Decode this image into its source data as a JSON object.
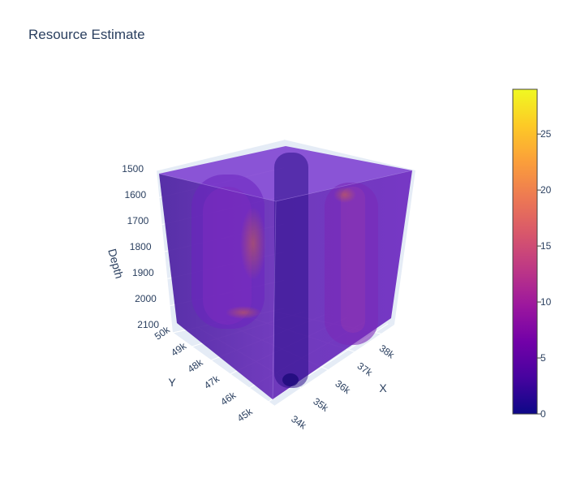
{
  "chart_data": {
    "type": "volume",
    "title": "Resource Estimate",
    "axes": {
      "x": {
        "label": "X",
        "range": [
          34000,
          38500
        ],
        "ticks": [
          "34k",
          "35k",
          "36k",
          "37k",
          "38k"
        ],
        "tick_values": [
          34000,
          35000,
          36000,
          37000,
          38000
        ]
      },
      "y": {
        "label": "Y",
        "range": [
          44700,
          50000
        ],
        "ticks": [
          "45k",
          "46k",
          "47k",
          "48k",
          "49k",
          "50k"
        ],
        "tick_values": [
          45000,
          46000,
          47000,
          48000,
          49000,
          50000
        ]
      },
      "z": {
        "label": "Depth",
        "range": [
          1500,
          2100
        ],
        "reversed": true,
        "ticks": [
          "1500",
          "1600",
          "1700",
          "1800",
          "1900",
          "2000",
          "2100"
        ],
        "tick_values": [
          1500,
          1600,
          1700,
          1800,
          1900,
          2000,
          2100
        ]
      }
    },
    "colorbar": {
      "range": [
        0,
        29
      ],
      "ticks": [
        "0",
        "5",
        "10",
        "15",
        "20",
        "25"
      ],
      "tick_values": [
        0,
        5,
        10,
        15,
        20,
        25
      ],
      "colorscale": [
        "#0d0887",
        "#46039f",
        "#7201a8",
        "#9c179e",
        "#bd3786",
        "#d8576b",
        "#ed7953",
        "#fb9f3a",
        "#fdca26",
        "#f0f921"
      ]
    },
    "colors": {
      "volume_fill": "#5a17b0",
      "volume_edge": "#6a2bc4",
      "hot": "#e0702a",
      "deep": "#1c0a7a"
    }
  }
}
